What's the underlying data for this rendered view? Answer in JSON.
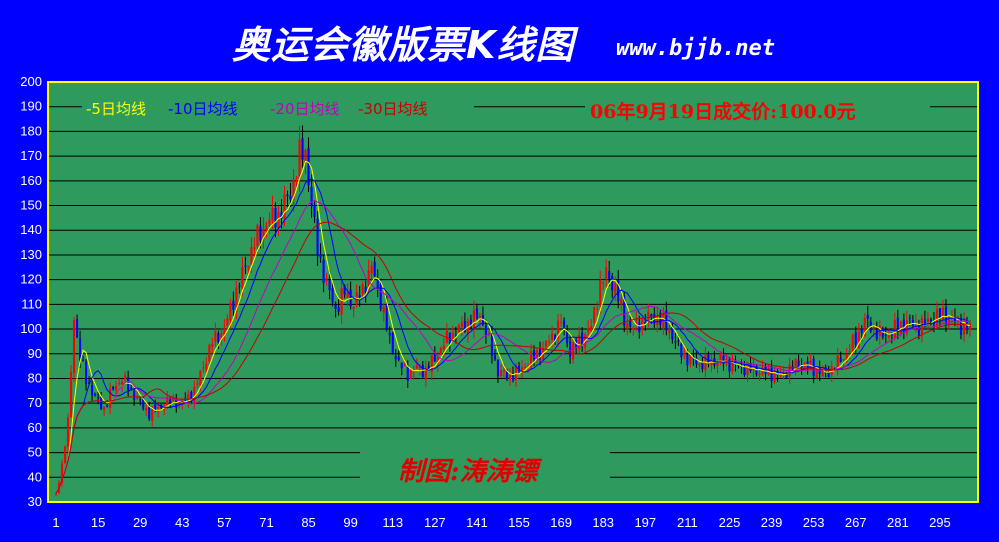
{
  "header": {
    "title": "奥运会徽版票K线图",
    "site": "www.bjjb.net"
  },
  "legend": {
    "ma5": "-5日均线",
    "ma10": "-10日均线",
    "ma20": "-20日均线",
    "ma30": "-30日均线"
  },
  "annotation": {
    "price_note": "06年9月19日成交价:100.0元",
    "author": "制图:涛涛镖"
  },
  "colors": {
    "background": "#0000ff",
    "plot": "#2e9a5e",
    "up": "#ff0000",
    "down": "#0000ff",
    "ma5": "#ffff00",
    "ma10": "#0000ff",
    "ma20": "#c400c4",
    "ma30": "#c80000",
    "grid": "#000000",
    "border": "#ffff00"
  },
  "chart_data": {
    "type": "candlestick",
    "title": "奥运会徽版票K线图",
    "ylim": [
      30,
      200
    ],
    "xlim": [
      1,
      305
    ],
    "x_ticks": [
      "1",
      "15",
      "29",
      "43",
      "57",
      "71",
      "85",
      "99",
      "113",
      "127",
      "141",
      "155",
      "169",
      "183",
      "197",
      "211",
      "225",
      "239",
      "253",
      "267",
      "281",
      "295"
    ],
    "y_ticks": [
      "30",
      "40",
      "50",
      "60",
      "70",
      "80",
      "90",
      "100",
      "110",
      "120",
      "130",
      "140",
      "150",
      "160",
      "170",
      "180",
      "190",
      "200"
    ],
    "grid": true,
    "legend_position": "top-left",
    "close_anchors": [
      {
        "x": 1,
        "y": 33
      },
      {
        "x": 3,
        "y": 45
      },
      {
        "x": 5,
        "y": 62
      },
      {
        "x": 7,
        "y": 105
      },
      {
        "x": 9,
        "y": 88
      },
      {
        "x": 11,
        "y": 80
      },
      {
        "x": 14,
        "y": 72
      },
      {
        "x": 17,
        "y": 68
      },
      {
        "x": 20,
        "y": 76
      },
      {
        "x": 23,
        "y": 80
      },
      {
        "x": 26,
        "y": 75
      },
      {
        "x": 29,
        "y": 70
      },
      {
        "x": 32,
        "y": 66
      },
      {
        "x": 35,
        "y": 68
      },
      {
        "x": 39,
        "y": 71
      },
      {
        "x": 43,
        "y": 70
      },
      {
        "x": 47,
        "y": 75
      },
      {
        "x": 50,
        "y": 85
      },
      {
        "x": 53,
        "y": 95
      },
      {
        "x": 57,
        "y": 100
      },
      {
        "x": 60,
        "y": 112
      },
      {
        "x": 63,
        "y": 122
      },
      {
        "x": 67,
        "y": 135
      },
      {
        "x": 71,
        "y": 143
      },
      {
        "x": 75,
        "y": 146
      },
      {
        "x": 79,
        "y": 155
      },
      {
        "x": 82,
        "y": 170
      },
      {
        "x": 84,
        "y": 172
      },
      {
        "x": 86,
        "y": 150
      },
      {
        "x": 88,
        "y": 132
      },
      {
        "x": 91,
        "y": 118
      },
      {
        "x": 94,
        "y": 108
      },
      {
        "x": 97,
        "y": 115
      },
      {
        "x": 100,
        "y": 110
      },
      {
        "x": 103,
        "y": 116
      },
      {
        "x": 106,
        "y": 125
      },
      {
        "x": 109,
        "y": 112
      },
      {
        "x": 112,
        "y": 95
      },
      {
        "x": 115,
        "y": 86
      },
      {
        "x": 118,
        "y": 82
      },
      {
        "x": 121,
        "y": 84
      },
      {
        "x": 124,
        "y": 83
      },
      {
        "x": 127,
        "y": 88
      },
      {
        "x": 131,
        "y": 96
      },
      {
        "x": 135,
        "y": 100
      },
      {
        "x": 139,
        "y": 103
      },
      {
        "x": 142,
        "y": 106
      },
      {
        "x": 145,
        "y": 95
      },
      {
        "x": 148,
        "y": 83
      },
      {
        "x": 151,
        "y": 81
      },
      {
        "x": 155,
        "y": 83
      },
      {
        "x": 159,
        "y": 88
      },
      {
        "x": 163,
        "y": 92
      },
      {
        "x": 166,
        "y": 97
      },
      {
        "x": 169,
        "y": 103
      },
      {
        "x": 172,
        "y": 91
      },
      {
        "x": 175,
        "y": 95
      },
      {
        "x": 179,
        "y": 101
      },
      {
        "x": 182,
        "y": 118
      },
      {
        "x": 184,
        "y": 122
      },
      {
        "x": 187,
        "y": 117
      },
      {
        "x": 190,
        "y": 104
      },
      {
        "x": 193,
        "y": 100
      },
      {
        "x": 197,
        "y": 104
      },
      {
        "x": 201,
        "y": 105
      },
      {
        "x": 205,
        "y": 100
      },
      {
        "x": 208,
        "y": 92
      },
      {
        "x": 211,
        "y": 88
      },
      {
        "x": 215,
        "y": 86
      },
      {
        "x": 219,
        "y": 87
      },
      {
        "x": 223,
        "y": 87
      },
      {
        "x": 227,
        "y": 85
      },
      {
        "x": 231,
        "y": 84
      },
      {
        "x": 235,
        "y": 83
      },
      {
        "x": 239,
        "y": 82
      },
      {
        "x": 242,
        "y": 81
      },
      {
        "x": 245,
        "y": 84
      },
      {
        "x": 248,
        "y": 86
      },
      {
        "x": 251,
        "y": 85
      },
      {
        "x": 254,
        "y": 83
      },
      {
        "x": 257,
        "y": 82
      },
      {
        "x": 260,
        "y": 85
      },
      {
        "x": 264,
        "y": 90
      },
      {
        "x": 267,
        "y": 96
      },
      {
        "x": 270,
        "y": 103
      },
      {
        "x": 273,
        "y": 100
      },
      {
        "x": 276,
        "y": 97
      },
      {
        "x": 280,
        "y": 100
      },
      {
        "x": 284,
        "y": 103
      },
      {
        "x": 288,
        "y": 101
      },
      {
        "x": 292,
        "y": 104
      },
      {
        "x": 296,
        "y": 106
      },
      {
        "x": 300,
        "y": 103
      },
      {
        "x": 305,
        "y": 100
      }
    ],
    "series": [
      {
        "name": "-5日均线",
        "window": 5
      },
      {
        "name": "-10日均线",
        "window": 10
      },
      {
        "name": "-20日均线",
        "window": 20
      },
      {
        "name": "-30日均线",
        "window": 30
      }
    ]
  }
}
